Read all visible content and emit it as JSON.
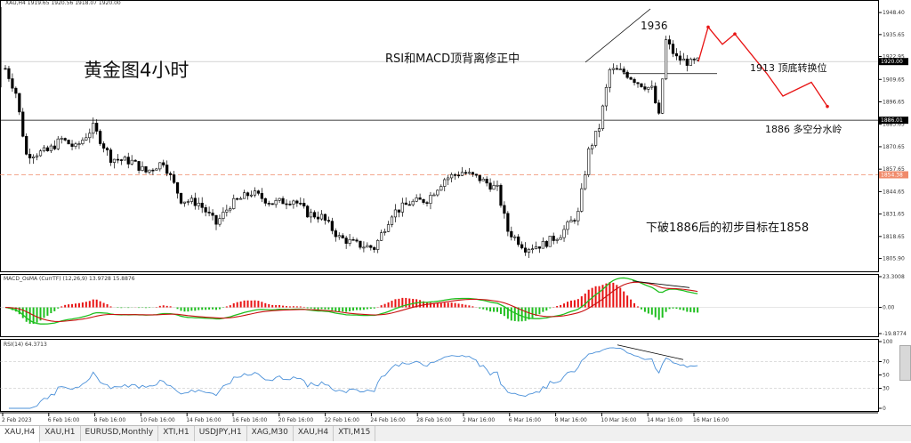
{
  "chart_data": [
    {
      "type": "candlestick",
      "header": "XAU,H4  1919.65 1920.56 1918.07 1920.00",
      "x_ticks": [
        "2 Feb 2023",
        "6 Feb 16:00",
        "8 Feb 16:00",
        "10 Feb 16:00",
        "14 Feb 16:00",
        "16 Feb 16:00",
        "20 Feb 16:00",
        "22 Feb 16:00",
        "24 Feb 16:00",
        "28 Feb 16:00",
        "2 Mar 16:00",
        "6 Mar 16:00",
        "8 Mar 16:00",
        "10 Mar 16:00",
        "14 Mar 16:00",
        "16 Mar 16:00"
      ],
      "y_ticks": [
        "1948.40",
        "1935.65",
        "1922.95",
        "1909.65",
        "1896.65",
        "1883.65",
        "1870.65",
        "1857.65",
        "1844.65",
        "1831.65",
        "1818.65",
        "1805.90"
      ],
      "ylim": [
        1800,
        1950
      ],
      "price_labels": {
        "current": "1920.00",
        "support": "1886.01",
        "target": "1854.38"
      },
      "levels": {
        "current": 1920.0,
        "support": 1886.01,
        "target": 1854.38
      },
      "close_path": [
        {
          "x": 0,
          "y": 1916
        },
        {
          "x": 3,
          "y": 1902
        },
        {
          "x": 6,
          "y": 1866
        },
        {
          "x": 12,
          "y": 1868
        },
        {
          "x": 16,
          "y": 1875
        },
        {
          "x": 20,
          "y": 1870
        },
        {
          "x": 25,
          "y": 1882
        },
        {
          "x": 30,
          "y": 1864
        },
        {
          "x": 36,
          "y": 1862
        },
        {
          "x": 40,
          "y": 1856
        },
        {
          "x": 45,
          "y": 1862
        },
        {
          "x": 50,
          "y": 1840
        },
        {
          "x": 55,
          "y": 1838
        },
        {
          "x": 60,
          "y": 1826
        },
        {
          "x": 64,
          "y": 1837
        },
        {
          "x": 70,
          "y": 1844
        },
        {
          "x": 76,
          "y": 1838
        },
        {
          "x": 82,
          "y": 1840
        },
        {
          "x": 86,
          "y": 1832
        },
        {
          "x": 90,
          "y": 1830
        },
        {
          "x": 95,
          "y": 1818
        },
        {
          "x": 100,
          "y": 1814
        },
        {
          "x": 105,
          "y": 1812
        },
        {
          "x": 110,
          "y": 1832
        },
        {
          "x": 115,
          "y": 1838
        },
        {
          "x": 120,
          "y": 1840
        },
        {
          "x": 125,
          "y": 1852
        },
        {
          "x": 130,
          "y": 1856
        },
        {
          "x": 135,
          "y": 1852
        },
        {
          "x": 140,
          "y": 1846
        },
        {
          "x": 143,
          "y": 1822
        },
        {
          "x": 148,
          "y": 1812
        },
        {
          "x": 153,
          "y": 1814
        },
        {
          "x": 158,
          "y": 1820
        },
        {
          "x": 163,
          "y": 1832
        },
        {
          "x": 166,
          "y": 1868
        },
        {
          "x": 169,
          "y": 1882
        },
        {
          "x": 172,
          "y": 1915
        },
        {
          "x": 176,
          "y": 1914
        },
        {
          "x": 180,
          "y": 1908
        },
        {
          "x": 184,
          "y": 1904
        },
        {
          "x": 186,
          "y": 1888
        },
        {
          "x": 188,
          "y": 1932
        },
        {
          "x": 191,
          "y": 1922
        },
        {
          "x": 195,
          "y": 1919
        },
        {
          "x": 197,
          "y": 1920
        }
      ],
      "annotations": {
        "title": "黄金图4小时",
        "divergence_note": "RSI和MACD顶背离修正中",
        "top_level": "1936",
        "reversal_level": "1913  顶底转换位",
        "divide_level": "1886  多空分水岭",
        "target_note": "下破1886后的初步目标在1858"
      },
      "forecast_path": [
        1920,
        1940,
        1930,
        1936,
        1913,
        1900,
        1908,
        1894
      ]
    },
    {
      "type": "bar",
      "header": "MACD_OsMA (CurrTF) (12,26,9) 13.9728 15.8876",
      "y_ticks": [
        "23.3008",
        "0.00",
        "-19.8774"
      ],
      "ylim": [
        -19.8774,
        23.3008
      ]
    },
    {
      "type": "line",
      "header": "RSI(14) 64.3713",
      "y_ticks": [
        "100",
        "70",
        "50",
        "30",
        "0"
      ],
      "ylim": [
        0,
        100
      ]
    }
  ],
  "colors": {
    "bull": "#000000",
    "bear": "#000000",
    "forecast": "#e81414",
    "macd_hist_up": "#e81414",
    "macd_hist_down": "#1fbf1f",
    "macd_line": "#1fbf1f",
    "signal_line": "#c81010",
    "rsi": "#4a90d9",
    "level_line": "#000000",
    "target_line": "#f08a6a"
  },
  "tabs": [
    "XAU,H4",
    "XAU,H1",
    "EURUSD,Monthly",
    "XTI,H1",
    "USDJPY,H1",
    "XAG,M30",
    "XAU,H4",
    "XTI,M15"
  ]
}
